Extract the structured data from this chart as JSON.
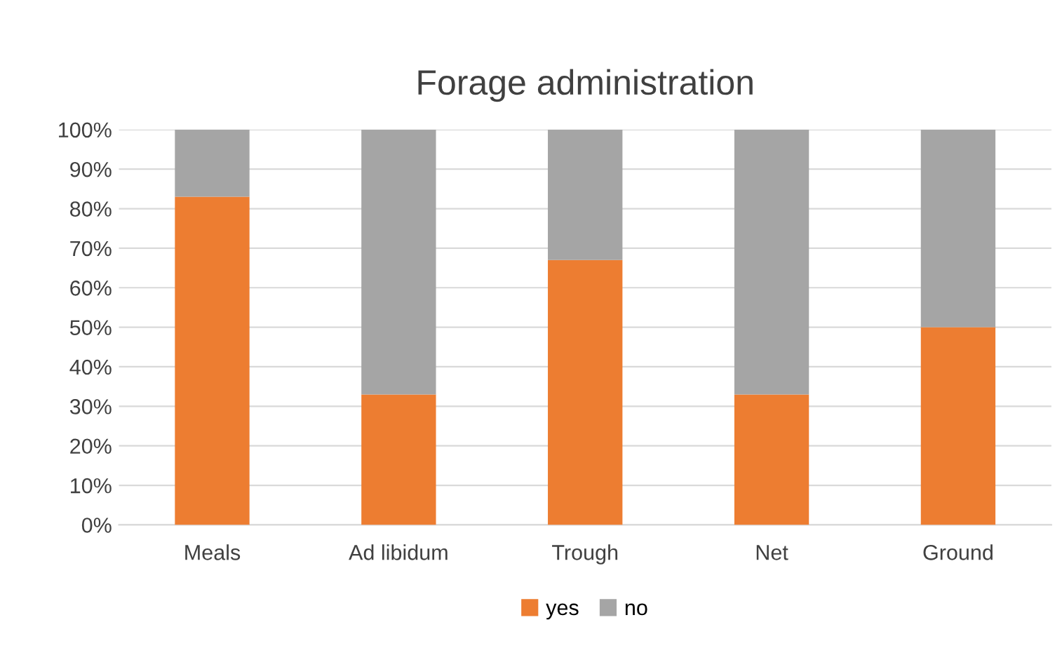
{
  "chart_data": {
    "type": "bar",
    "title": "Forage administration",
    "categories": [
      "Meals",
      "Ad libidum",
      "Trough",
      "Net",
      "Ground"
    ],
    "stacked": true,
    "series": [
      {
        "name": "yes",
        "color": "#ed7d31",
        "values": [
          83,
          33,
          67,
          33,
          50
        ]
      },
      {
        "name": "no",
        "color": "#a5a5a5",
        "values": [
          17,
          67,
          33,
          67,
          50
        ]
      }
    ],
    "ylim": [
      0,
      100
    ],
    "yticks": [
      {
        "value": 0,
        "label": "0%"
      },
      {
        "value": 10,
        "label": "10%"
      },
      {
        "value": 20,
        "label": "20%"
      },
      {
        "value": 30,
        "label": "30%"
      },
      {
        "value": 40,
        "label": "40%"
      },
      {
        "value": 50,
        "label": "50%"
      },
      {
        "value": 60,
        "label": "60%"
      },
      {
        "value": 70,
        "label": "70%"
      },
      {
        "value": 80,
        "label": "80%"
      },
      {
        "value": 90,
        "label": "90%"
      },
      {
        "value": 100,
        "label": "100%"
      }
    ],
    "grid": "y",
    "legend": "bottom"
  }
}
